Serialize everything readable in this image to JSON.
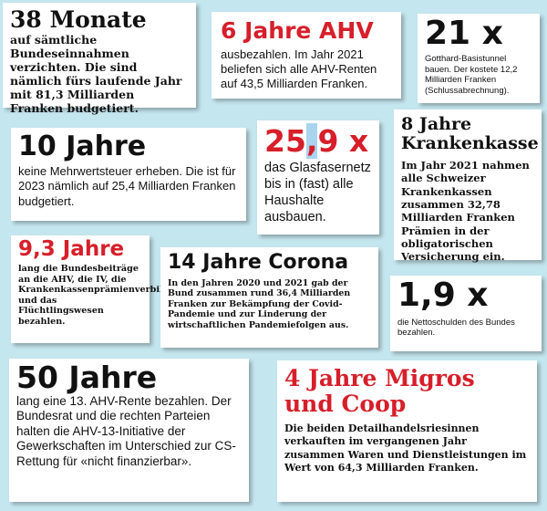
{
  "cards": {
    "monate": {
      "title": "38 Monate",
      "text": "auf sämtliche Bundeseinnahmen verzichten. Die sind nämlich fürs laufende Jahr mit 81,3 Milliarden Franken budgetiert."
    },
    "ahv": {
      "title": "6 Jahre AHV",
      "text": "ausbezahlen. Im Jahr 2021 beliefen sich alle AHV-Renten auf 43,5 Milliarden Franken."
    },
    "gotthard": {
      "title": "21 x",
      "text": "Gotthard-Basistunnel bauen. Der kostete 12,2 Milliarden Franken (Schlussabrechnung)."
    },
    "mwst": {
      "title": "10 Jahre",
      "text": "keine Mehrwertsteuer erheben. Die ist für 2023 nämlich auf 25,4 Milliarden Franken budgetiert."
    },
    "glasfaser": {
      "title_pre": "25",
      "title_comma": ",",
      "title_post": "9 x",
      "text": "das Glasfasernetz bis in (fast) alle Haushalte ausbauen."
    },
    "kk": {
      "title": "8 Jahre Krankenkasse",
      "text": "Im Jahr 2021 nahmen alle Schweizer Krankenkassen zusammen 32,78 Milliarden Franken Prämien in der obligatorischen Versicherung ein."
    },
    "bund": {
      "title": "9,3 Jahre",
      "text": "lang die Bundesbeiträge an die AHV, die IV, die Krankenkassenprämienverbilligungen und das Flüchtlingswesen bezahlen."
    },
    "corona": {
      "title": "14 Jahre Corona",
      "text": "In den Jahren 2020 und 2021 gab der Bund zusammen rund 36,4 Milliarden Franken zur Bekämpfung der Covid-Pandemie und zur Linderung der wirtschaftlichen Pandemiefolgen aus."
    },
    "schulden": {
      "title": "1,9 x",
      "text": "die Nettoschulden des Bundes bezahlen."
    },
    "rente": {
      "title": "50 Jahre",
      "text": "lang eine 13. AHV-Rente bezahlen. Der Bundesrat und die rechten Parteien halten die AHV-13-Initiative der Gewerkschaften im Unterschied zur CS-Rettung für «nicht finanzierbar»."
    },
    "migros": {
      "title": "4 Jahre Migros und Coop",
      "text": "Die beiden Detailhandelsriesinnen verkauften im vergangenen Jahr zusammen Waren und Dienstleistungen im Wert von 64,3 Milliarden Franken."
    }
  },
  "colors": {
    "accent_red": "#d61f2a",
    "background": "#c4e6ee",
    "highlight": "#a9d4ee"
  }
}
